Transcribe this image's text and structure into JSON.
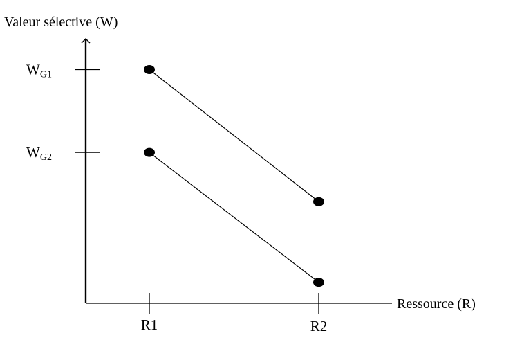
{
  "chart_data": {
    "type": "line",
    "ylabel": "Valeur sélective (W)",
    "xlabel": "Ressource (R)",
    "categories": [
      "R1",
      "R2"
    ],
    "y_ticks": [
      {
        "base": "W",
        "sub": "G1",
        "value": 1.0
      },
      {
        "base": "W",
        "sub": "G2",
        "value": 0.63
      }
    ],
    "series": [
      {
        "values": [
          1.0,
          0.41
        ]
      },
      {
        "values": [
          0.63,
          0.05
        ]
      }
    ],
    "ylim": [
      -0.05,
      1.15
    ],
    "grid": false,
    "legend": "none",
    "axis_color": "#000000",
    "line_color": "#000000",
    "marker": "filled-ellipse"
  }
}
